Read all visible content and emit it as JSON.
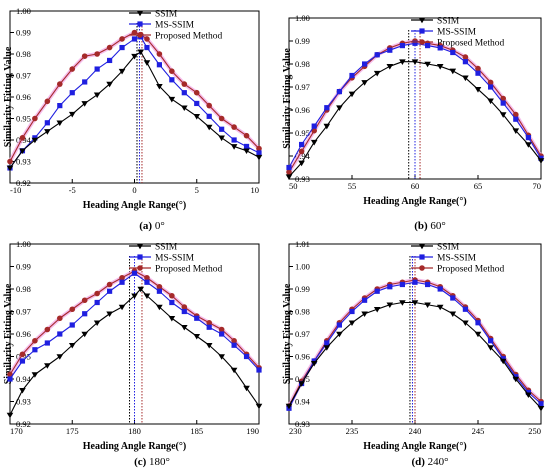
{
  "chart_data": [
    {
      "type": "line",
      "caption": "(a) 0°",
      "caption_bold": "(a)",
      "caption_rest": " 0°",
      "xlabel": "Heading Angle Range(°)",
      "ylabel": "Similarity Fitting Value",
      "xlim": [
        -10,
        10
      ],
      "ylim": [
        0.92,
        1.0
      ],
      "xticks": [
        -10,
        -5,
        0,
        5,
        10
      ],
      "xtick_labels": [
        "-10",
        "-5",
        "0",
        "5",
        "10"
      ],
      "yticks": [
        0.92,
        0.93,
        0.94,
        0.95,
        0.96,
        0.97,
        0.98,
        0.99,
        1.0
      ],
      "ytick_labels": [
        "0.92",
        "0.93",
        "0.94",
        "0.95",
        "0.96",
        "0.97",
        "0.98",
        "0.99",
        "1.00"
      ],
      "legend_position": "top-right",
      "peak_lines": [
        0.2,
        0.4,
        0.6
      ],
      "series": [
        {
          "name": "SSIM",
          "color": "#000000",
          "marker": "triangle-down",
          "x": [
            -10,
            -9,
            -8,
            -7,
            -6,
            -5,
            -4,
            -3,
            -2,
            -1,
            0,
            0.5,
            1,
            2,
            3,
            4,
            5,
            6,
            7,
            8,
            9,
            10
          ],
          "y": [
            0.927,
            0.935,
            0.94,
            0.944,
            0.948,
            0.952,
            0.957,
            0.961,
            0.966,
            0.972,
            0.979,
            0.981,
            0.976,
            0.965,
            0.959,
            0.955,
            0.951,
            0.946,
            0.941,
            0.937,
            0.935,
            0.932
          ]
        },
        {
          "name": "MS-SSIM",
          "color": "#1f1fe0",
          "marker": "square",
          "x": [
            -10,
            -9,
            -8,
            -7,
            -6,
            -5,
            -4,
            -3,
            -2,
            -1,
            0,
            0.5,
            1,
            2,
            3,
            4,
            5,
            6,
            7,
            8,
            9,
            10
          ],
          "y": [
            0.927,
            0.935,
            0.941,
            0.948,
            0.956,
            0.962,
            0.967,
            0.973,
            0.977,
            0.983,
            0.987,
            0.988,
            0.983,
            0.975,
            0.968,
            0.962,
            0.957,
            0.951,
            0.945,
            0.94,
            0.937,
            0.934
          ]
        },
        {
          "name": "Proposed Method",
          "color": "#a52a2a",
          "marker": "circle",
          "x": [
            -10,
            -9,
            -8,
            -7,
            -6,
            -5,
            -4,
            -3,
            -2,
            -1,
            0,
            0.5,
            1,
            2,
            3,
            4,
            5,
            6,
            7,
            8,
            9,
            10
          ],
          "y": [
            0.93,
            0.941,
            0.95,
            0.958,
            0.966,
            0.973,
            0.979,
            0.98,
            0.983,
            0.987,
            0.99,
            0.989,
            0.987,
            0.98,
            0.972,
            0.966,
            0.962,
            0.956,
            0.95,
            0.946,
            0.942,
            0.936
          ]
        }
      ]
    },
    {
      "type": "line",
      "caption": "(b) 60°",
      "caption_bold": "(b)",
      "caption_rest": " 60°",
      "xlabel": "Heading Angle Range(°)",
      "ylabel": "Similarity Fitting Value",
      "xlim": [
        50,
        70
      ],
      "ylim": [
        0.93,
        1.0
      ],
      "xticks": [
        50,
        55,
        60,
        65,
        70
      ],
      "xtick_labels": [
        "50",
        "55",
        "60",
        "65",
        "70"
      ],
      "yticks": [
        0.93,
        0.94,
        0.95,
        0.96,
        0.97,
        0.98,
        0.99,
        1.0
      ],
      "ytick_labels": [
        "0.93",
        "0.94",
        "0.95",
        "0.96",
        "0.97",
        "0.98",
        "0.99",
        "1.00"
      ],
      "legend_position": "top-right",
      "peak_lines": [
        59.5,
        60.0,
        60.4
      ],
      "series": [
        {
          "name": "SSIM",
          "color": "#000000",
          "marker": "triangle-down",
          "x": [
            50,
            51,
            52,
            53,
            54,
            55,
            56,
            57,
            58,
            59,
            60,
            61,
            62,
            63,
            64,
            65,
            66,
            67,
            68,
            69,
            70
          ],
          "y": [
            0.931,
            0.937,
            0.946,
            0.953,
            0.961,
            0.967,
            0.972,
            0.976,
            0.979,
            0.981,
            0.981,
            0.98,
            0.979,
            0.977,
            0.974,
            0.969,
            0.964,
            0.958,
            0.951,
            0.945,
            0.938
          ]
        },
        {
          "name": "MS-SSIM",
          "color": "#1f1fe0",
          "marker": "square",
          "x": [
            50,
            51,
            52,
            53,
            54,
            55,
            56,
            57,
            58,
            59,
            60,
            61,
            62,
            63,
            64,
            65,
            66,
            67,
            68,
            69,
            70
          ],
          "y": [
            0.935,
            0.945,
            0.953,
            0.961,
            0.968,
            0.975,
            0.98,
            0.984,
            0.986,
            0.988,
            0.989,
            0.988,
            0.987,
            0.985,
            0.981,
            0.976,
            0.97,
            0.963,
            0.956,
            0.948,
            0.939
          ]
        },
        {
          "name": "Proposed Method",
          "color": "#a52a2a",
          "marker": "circle",
          "x": [
            50,
            51,
            52,
            53,
            54,
            55,
            56,
            57,
            58,
            59,
            60,
            61,
            62,
            63,
            64,
            65,
            66,
            67,
            68,
            69,
            70
          ],
          "y": [
            0.933,
            0.942,
            0.951,
            0.96,
            0.968,
            0.974,
            0.979,
            0.984,
            0.987,
            0.989,
            0.99,
            0.989,
            0.988,
            0.986,
            0.983,
            0.978,
            0.972,
            0.965,
            0.958,
            0.949,
            0.94
          ]
        }
      ]
    },
    {
      "type": "line",
      "caption": "(c) 180°",
      "caption_bold": "(c)",
      "caption_rest": " 180°",
      "xlabel": "Heading Angle Range(°)",
      "ylabel": "Similarity Fitting Value",
      "xlim": [
        170,
        190
      ],
      "ylim": [
        0.92,
        1.0
      ],
      "xticks": [
        170,
        175,
        180,
        185,
        190
      ],
      "xtick_labels": [
        "170",
        "175",
        "180",
        "185",
        "190"
      ],
      "yticks": [
        0.92,
        0.93,
        0.94,
        0.95,
        0.96,
        0.97,
        0.98,
        0.99,
        1.0
      ],
      "ytick_labels": [
        "0.92",
        "0.93",
        "0.94",
        "0.95",
        "0.96",
        "0.97",
        "0.98",
        "0.99",
        "1.00"
      ],
      "legend_position": "top-right",
      "peak_lines": [
        179.6,
        180.0,
        180.6
      ],
      "series": [
        {
          "name": "SSIM",
          "color": "#000000",
          "marker": "triangle-down",
          "x": [
            170,
            171,
            172,
            173,
            174,
            175,
            176,
            177,
            178,
            179,
            180,
            180.5,
            181,
            182,
            183,
            184,
            185,
            186,
            187,
            188,
            189,
            190
          ],
          "y": [
            0.924,
            0.935,
            0.942,
            0.946,
            0.95,
            0.955,
            0.96,
            0.965,
            0.969,
            0.972,
            0.977,
            0.98,
            0.977,
            0.972,
            0.967,
            0.963,
            0.959,
            0.955,
            0.95,
            0.944,
            0.936,
            0.928
          ]
        },
        {
          "name": "MS-SSIM",
          "color": "#1f1fe0",
          "marker": "square",
          "x": [
            170,
            171,
            172,
            173,
            174,
            175,
            176,
            177,
            178,
            179,
            180,
            181,
            182,
            183,
            184,
            185,
            186,
            187,
            188,
            189,
            190
          ],
          "y": [
            0.94,
            0.948,
            0.953,
            0.956,
            0.96,
            0.964,
            0.969,
            0.974,
            0.979,
            0.983,
            0.987,
            0.983,
            0.979,
            0.974,
            0.97,
            0.967,
            0.963,
            0.96,
            0.955,
            0.95,
            0.944
          ]
        },
        {
          "name": "Proposed Method",
          "color": "#a52a2a",
          "marker": "circle",
          "x": [
            170,
            171,
            172,
            173,
            174,
            175,
            176,
            177,
            178,
            179,
            180,
            181,
            182,
            183,
            184,
            185,
            186,
            187,
            188,
            189,
            190
          ],
          "y": [
            0.942,
            0.951,
            0.957,
            0.962,
            0.967,
            0.971,
            0.975,
            0.978,
            0.982,
            0.985,
            0.988,
            0.985,
            0.981,
            0.977,
            0.972,
            0.968,
            0.965,
            0.962,
            0.957,
            0.951,
            0.945
          ]
        }
      ]
    },
    {
      "type": "line",
      "caption": "(d) 240°",
      "caption_bold": "(d)",
      "caption_rest": " 240°",
      "xlabel": "Heading Angle Range(°)",
      "ylabel": "Similarity Fitting Value",
      "xlim": [
        230,
        250
      ],
      "ylim": [
        0.93,
        1.01
      ],
      "xticks": [
        230,
        235,
        240,
        245,
        250
      ],
      "xtick_labels": [
        "230",
        "235",
        "240",
        "245",
        "250"
      ],
      "yticks": [
        0.93,
        0.94,
        0.95,
        0.96,
        0.97,
        0.98,
        0.99,
        1.0,
        1.01
      ],
      "ytick_labels": [
        "0.93",
        "0.94",
        "0.95",
        "0.96",
        "0.97",
        "0.98",
        "0.99",
        "1.00",
        "1.01"
      ],
      "legend_position": "top-right",
      "peak_lines": [
        239.6,
        239.8,
        240.0
      ],
      "series": [
        {
          "name": "SSIM",
          "color": "#000000",
          "marker": "triangle-down",
          "x": [
            230,
            231,
            232,
            233,
            234,
            235,
            236,
            237,
            238,
            239,
            240,
            241,
            242,
            243,
            244,
            245,
            246,
            247,
            248,
            249,
            250
          ],
          "y": [
            0.938,
            0.948,
            0.957,
            0.964,
            0.97,
            0.975,
            0.979,
            0.981,
            0.983,
            0.984,
            0.984,
            0.983,
            0.982,
            0.979,
            0.975,
            0.97,
            0.964,
            0.958,
            0.95,
            0.943,
            0.937
          ]
        },
        {
          "name": "MS-SSIM",
          "color": "#1f1fe0",
          "marker": "square",
          "x": [
            230,
            231,
            232,
            233,
            234,
            235,
            236,
            237,
            238,
            239,
            240,
            241,
            242,
            243,
            244,
            245,
            246,
            247,
            248,
            249,
            250
          ],
          "y": [
            0.937,
            0.948,
            0.958,
            0.966,
            0.974,
            0.98,
            0.985,
            0.989,
            0.991,
            0.992,
            0.993,
            0.992,
            0.99,
            0.986,
            0.981,
            0.975,
            0.967,
            0.959,
            0.951,
            0.944,
            0.939
          ]
        },
        {
          "name": "Proposed Method",
          "color": "#a52a2a",
          "marker": "circle",
          "x": [
            230,
            231,
            232,
            233,
            234,
            235,
            236,
            237,
            238,
            239,
            240,
            241,
            242,
            243,
            244,
            245,
            246,
            247,
            248,
            249,
            250
          ],
          "y": [
            0.938,
            0.949,
            0.958,
            0.967,
            0.975,
            0.981,
            0.986,
            0.99,
            0.992,
            0.993,
            0.994,
            0.993,
            0.991,
            0.987,
            0.982,
            0.976,
            0.968,
            0.96,
            0.952,
            0.945,
            0.94
          ]
        }
      ]
    }
  ]
}
